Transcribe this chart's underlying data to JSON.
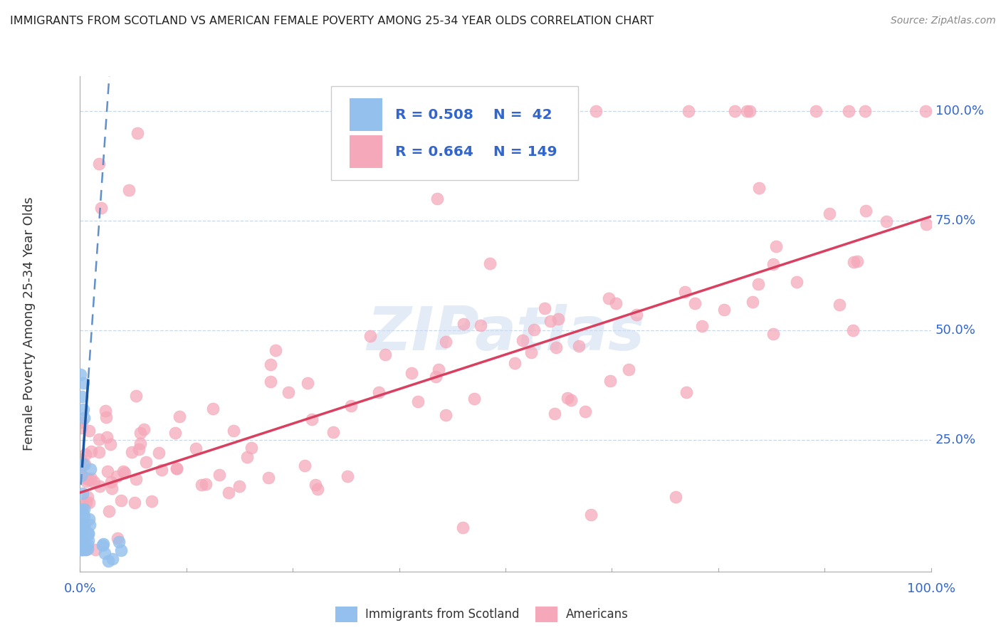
{
  "title": "IMMIGRANTS FROM SCOTLAND VS AMERICAN FEMALE POVERTY AMONG 25-34 YEAR OLDS CORRELATION CHART",
  "source": "Source: ZipAtlas.com",
  "ylabel": "Female Poverty Among 25-34 Year Olds",
  "watermark": "ZIPatlas",
  "legend_blue_r": "0.508",
  "legend_blue_n": "42",
  "legend_pink_r": "0.664",
  "legend_pink_n": "149",
  "legend_label_blue": "Immigrants from Scotland",
  "legend_label_pink": "Americans",
  "blue_scatter_color": "#93c0ed",
  "pink_scatter_color": "#f5a8ba",
  "blue_line_color": "#1a55a0",
  "pink_line_color": "#d94060",
  "blue_dashed_color": "#6090cc",
  "background_color": "#ffffff",
  "grid_color": "#c8d8e8",
  "title_color": "#222222",
  "axis_label_color": "#3366cc",
  "legend_r_color": "#3366cc",
  "tick_color": "#aaaaaa"
}
